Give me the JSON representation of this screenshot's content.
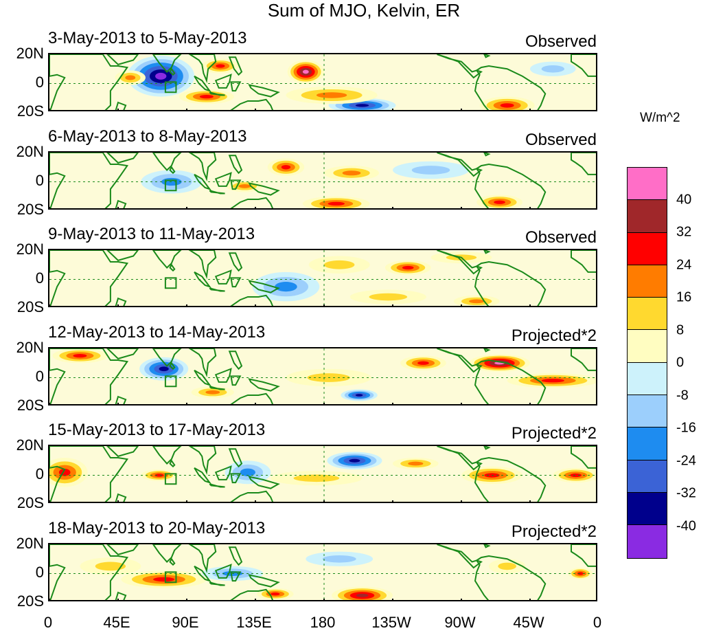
{
  "figure": {
    "title": "Sum of MJO, Kelvin, ER",
    "units": "W/m^2"
  },
  "panels": [
    {
      "date": "3-May-2013 to 5-May-2013",
      "status": "Observed",
      "blobs": [
        {
          "lon": 73,
          "lat": 5,
          "rlon": 22,
          "rlat": 14,
          "value": -45
        },
        {
          "lon": 53,
          "lat": 4,
          "rlon": 10,
          "rlat": 5,
          "value": 24
        },
        {
          "lon": 112,
          "lat": 12,
          "rlon": 12,
          "rlat": 5,
          "value": 28
        },
        {
          "lon": 103,
          "lat": -9,
          "rlon": 18,
          "rlat": 5,
          "value": 28
        },
        {
          "lon": 205,
          "lat": -15,
          "rlon": 22,
          "rlat": 5,
          "value": -36
        },
        {
          "lon": 168,
          "lat": 8,
          "rlon": 12,
          "rlat": 8,
          "value": 42
        },
        {
          "lon": 185,
          "lat": -8,
          "rlon": 30,
          "rlat": 6,
          "value": 20
        },
        {
          "lon": 300,
          "lat": -15,
          "rlon": 18,
          "rlat": 6,
          "value": 32
        },
        {
          "lon": 330,
          "lat": 10,
          "rlon": 15,
          "rlat": 5,
          "value": -10
        }
      ]
    },
    {
      "date": "6-May-2013 to 8-May-2013",
      "status": "Observed",
      "blobs": [
        {
          "lon": 80,
          "lat": 0,
          "rlon": 20,
          "rlat": 8,
          "value": -24
        },
        {
          "lon": 155,
          "lat": 10,
          "rlon": 12,
          "rlat": 6,
          "value": 26
        },
        {
          "lon": 198,
          "lat": 6,
          "rlon": 18,
          "rlat": 5,
          "value": 18
        },
        {
          "lon": 188,
          "lat": -15,
          "rlon": 22,
          "rlat": 5,
          "value": 30
        },
        {
          "lon": 128,
          "lat": -3,
          "rlon": 12,
          "rlat": 4,
          "value": 18
        },
        {
          "lon": 295,
          "lat": -14,
          "rlon": 15,
          "rlat": 5,
          "value": 26
        },
        {
          "lon": 250,
          "lat": 8,
          "rlon": 25,
          "rlat": 6,
          "value": -14
        }
      ]
    },
    {
      "date": "9-May-2013 to 11-May-2013",
      "status": "Observed",
      "blobs": [
        {
          "lon": 155,
          "lat": -5,
          "rlon": 22,
          "rlat": 10,
          "value": -24
        },
        {
          "lon": 190,
          "lat": 10,
          "rlon": 20,
          "rlat": 6,
          "value": 16
        },
        {
          "lon": 235,
          "lat": 8,
          "rlon": 15,
          "rlat": 5,
          "value": 26
        },
        {
          "lon": 222,
          "lat": -12,
          "rlon": 25,
          "rlat": 5,
          "value": 14
        },
        {
          "lon": 270,
          "lat": 15,
          "rlon": 20,
          "rlat": 4,
          "value": 12
        },
        {
          "lon": 280,
          "lat": -15,
          "rlon": 15,
          "rlat": 4,
          "value": 22
        }
      ]
    },
    {
      "date": "12-May-2013 to 14-May-2013",
      "status": "Projected*2",
      "blobs": [
        {
          "lon": 75,
          "lat": 6,
          "rlon": 16,
          "rlat": 8,
          "value": -40
        },
        {
          "lon": 20,
          "lat": 15,
          "rlon": 18,
          "rlat": 5,
          "value": 26
        },
        {
          "lon": 107,
          "lat": -10,
          "rlon": 14,
          "rlat": 4,
          "value": 24
        },
        {
          "lon": 183,
          "lat": 0,
          "rlon": 28,
          "rlat": 6,
          "value": 14
        },
        {
          "lon": 203,
          "lat": -12,
          "rlon": 12,
          "rlat": 4,
          "value": -36
        },
        {
          "lon": 245,
          "lat": 10,
          "rlon": 15,
          "rlat": 5,
          "value": 28
        },
        {
          "lon": 295,
          "lat": 10,
          "rlon": 20,
          "rlat": 6,
          "value": 42
        },
        {
          "lon": 330,
          "lat": -2,
          "rlon": 30,
          "rlat": 5,
          "value": 26
        }
      ]
    },
    {
      "date": "15-May-2013 to 17-May-2013",
      "status": "Projected*2",
      "blobs": [
        {
          "lon": 10,
          "lat": 2,
          "rlon": 15,
          "rlat": 10,
          "value": 26
        },
        {
          "lon": 72,
          "lat": 0,
          "rlon": 12,
          "rlat": 4,
          "value": 28
        },
        {
          "lon": 200,
          "lat": 10,
          "rlon": 18,
          "rlat": 6,
          "value": -40
        },
        {
          "lon": 240,
          "lat": 8,
          "rlon": 15,
          "rlat": 4,
          "value": 24
        },
        {
          "lon": 130,
          "lat": 2,
          "rlon": 15,
          "rlat": 8,
          "value": -22
        },
        {
          "lon": 290,
          "lat": 0,
          "rlon": 20,
          "rlat": 6,
          "value": 26
        },
        {
          "lon": 345,
          "lat": 0,
          "rlon": 15,
          "rlat": 5,
          "value": 30
        },
        {
          "lon": 175,
          "lat": -2,
          "rlon": 30,
          "rlat": 5,
          "value": 12
        }
      ]
    },
    {
      "date": "18-May-2013 to 20-May-2013",
      "status": "Projected*2",
      "blobs": [
        {
          "lon": 75,
          "lat": -4,
          "rlon": 28,
          "rlat": 6,
          "value": 30
        },
        {
          "lon": 40,
          "lat": 5,
          "rlon": 20,
          "rlat": 6,
          "value": 14
        },
        {
          "lon": 205,
          "lat": -15,
          "rlon": 20,
          "rlat": 6,
          "value": 36
        },
        {
          "lon": 148,
          "lat": -14,
          "rlon": 12,
          "rlat": 4,
          "value": 28
        },
        {
          "lon": 120,
          "lat": 0,
          "rlon": 20,
          "rlat": 5,
          "value": -20
        },
        {
          "lon": 190,
          "lat": 10,
          "rlon": 22,
          "rlat": 5,
          "value": -16
        },
        {
          "lon": 300,
          "lat": 5,
          "rlon": 12,
          "rlat": 5,
          "value": 14
        },
        {
          "lon": 348,
          "lat": 0,
          "rlon": 8,
          "rlat": 4,
          "value": 28
        }
      ]
    }
  ],
  "axes": {
    "lat_labels": [
      "20N",
      "0",
      "20S"
    ],
    "lon_labels": [
      "0",
      "45E",
      "90E",
      "135E",
      "180",
      "135W",
      "90W",
      "45W",
      "0"
    ],
    "lon_values": [
      0,
      45,
      90,
      135,
      180,
      225,
      270,
      315,
      360
    ],
    "lat_range": [
      -20,
      20
    ],
    "lon_range": [
      0,
      360
    ]
  },
  "colorbar": {
    "labels": [
      "40",
      "32",
      "24",
      "16",
      "8",
      "0",
      "-8",
      "-16",
      "-24",
      "-32",
      "-40"
    ],
    "colors": [
      "#ff6ec7",
      "#a0272a",
      "#ff0000",
      "#ff7c00",
      "#ffd92f",
      "#fffdc1",
      "#cdf2fb",
      "#9ccffc",
      "#1e8cf0",
      "#3b63d6",
      "#00008c",
      "#8a2be2"
    ],
    "thresholds": [
      40,
      32,
      24,
      16,
      8,
      0,
      -8,
      -16,
      -24,
      -32,
      -40
    ]
  },
  "land_color": "#1a8a1a",
  "box_lon": [
    76,
    83
  ],
  "box_lat": [
    -6,
    1
  ]
}
